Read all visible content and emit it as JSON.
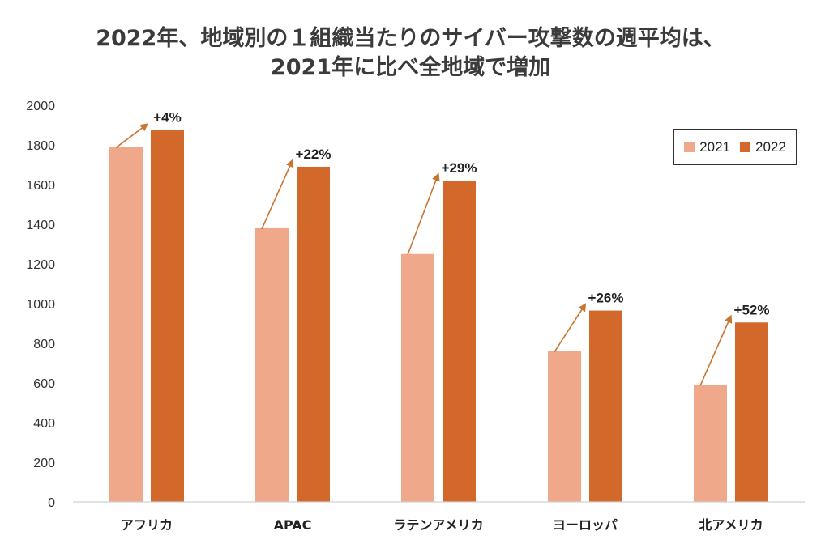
{
  "title_lines": [
    "2022年、地域別の１組織当たりのサイバー攻撃数の週平均は、",
    "2021年に比べ全地域で増加"
  ],
  "chart_data": {
    "type": "bar",
    "categories": [
      "アフリカ",
      "APAC",
      "ラテンアメリカ",
      "ヨーロッパ",
      "北アメリカ"
    ],
    "series": [
      {
        "name": "2021",
        "color": "#f0a88a",
        "values": [
          1790,
          1380,
          1250,
          760,
          590
        ]
      },
      {
        "name": "2022",
        "color": "#d2692b",
        "values": [
          1875,
          1690,
          1620,
          965,
          905
        ]
      }
    ],
    "annotations": [
      "+4%",
      "+22%",
      "+29%",
      "+26%",
      "+52%"
    ],
    "ylim": [
      0,
      2000
    ],
    "yticks": [
      0,
      200,
      400,
      600,
      800,
      1000,
      1200,
      1400,
      1600,
      1800,
      2000
    ],
    "arrow_color": "#c9742f",
    "legend_position": "top-right"
  }
}
